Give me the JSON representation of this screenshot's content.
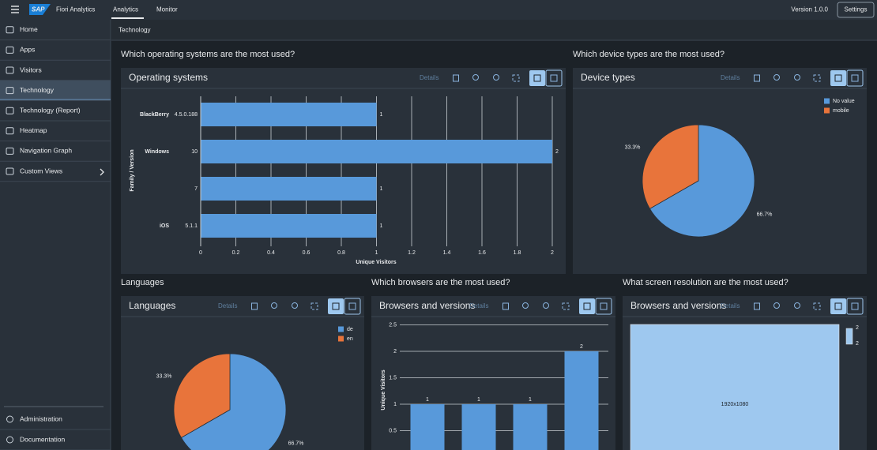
{
  "topbar": {
    "logo": "SAP",
    "app_title": "Fiori Analytics",
    "tabs": [
      "Analytics",
      "Monitor"
    ],
    "version": "Version 1.0.0",
    "settings": "Settings"
  },
  "sidebar": {
    "items": [
      "Home",
      "Apps",
      "Visitors",
      "Technology",
      "Technology (Report)",
      "Heatmap",
      "Navigation Graph",
      "Custom Views"
    ],
    "footer_items": [
      "Administration",
      "Documentation"
    ]
  },
  "page_title": "Technology",
  "sections": [
    {
      "heading": "Which operating systems are the most used?",
      "panel_title": "Operating systems",
      "details": "Details",
      "chart": {
        "type": "hbar",
        "families": [
          "BlackBerry",
          "Windows",
          null,
          "iOS"
        ],
        "versions": [
          "4.5.0.188",
          "10",
          "7",
          "5.1.1"
        ],
        "values": [
          1,
          2,
          1,
          1
        ],
        "color": "#5899da",
        "xlim": [
          0,
          2
        ],
        "xticks": [
          0,
          0.2,
          0.4,
          0.6,
          0.8,
          1,
          1.2,
          1.4,
          1.6,
          1.8,
          2
        ],
        "xlabel": "Unique Visitors",
        "ylabel": "Family / Version",
        "grid": true
      }
    },
    {
      "heading": "Which device types are the most used?",
      "panel_title": "Device types",
      "details": "Details",
      "chart": {
        "type": "pie",
        "categories": [
          "No value",
          "mobile"
        ],
        "values": [
          66.7,
          33.3
        ],
        "value_labels": [
          "66.7%",
          "33.3%"
        ],
        "colors": [
          "#5899da",
          "#e8743b"
        ]
      }
    },
    {
      "heading": "Languages",
      "panel_title": "Languages",
      "details": "Details",
      "chart": {
        "type": "pie",
        "categories": [
          "de",
          "en"
        ],
        "values": [
          66.7,
          33.3
        ],
        "value_labels": [
          "66.7%",
          "33.3%"
        ],
        "colors": [
          "#5899da",
          "#e8743b"
        ]
      }
    },
    {
      "heading": "Which browsers are the most used?",
      "panel_title": "Browsers and versions",
      "details": "Details",
      "chart": {
        "type": "bar",
        "values": [
          1,
          1,
          1,
          2
        ],
        "color": "#5899da",
        "ylim": [
          0,
          2.5
        ],
        "yticks": [
          0.5,
          1,
          1.5,
          2,
          2.5
        ],
        "ylabel": "Unique Visitors",
        "grid": true
      }
    },
    {
      "heading": "What screen resolution are the most used?",
      "panel_title": "Browsers and versions",
      "details": "Details",
      "chart": {
        "type": "treemap",
        "categories": [
          "1920x1080"
        ],
        "values": [
          2
        ],
        "color": "#9ec8ef",
        "legend_labels": [
          2,
          2
        ]
      }
    }
  ]
}
